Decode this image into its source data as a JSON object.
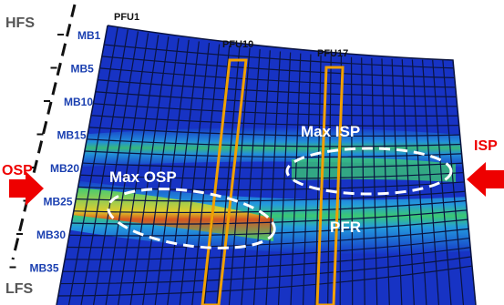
{
  "labels": {
    "hfs": "HFS",
    "lfs": "LFS",
    "osp": "OSP",
    "isp": "ISP"
  },
  "modules": [
    "MB1",
    "MB5",
    "MB10",
    "MB15",
    "MB20",
    "MB25",
    "MB30",
    "MB35"
  ],
  "pfus": [
    "PFU1",
    "PFU10",
    "PFU17"
  ],
  "annotations": {
    "max_isp": "Max ISP",
    "max_osp": "Max OSP",
    "pfr": "PFR"
  }
}
